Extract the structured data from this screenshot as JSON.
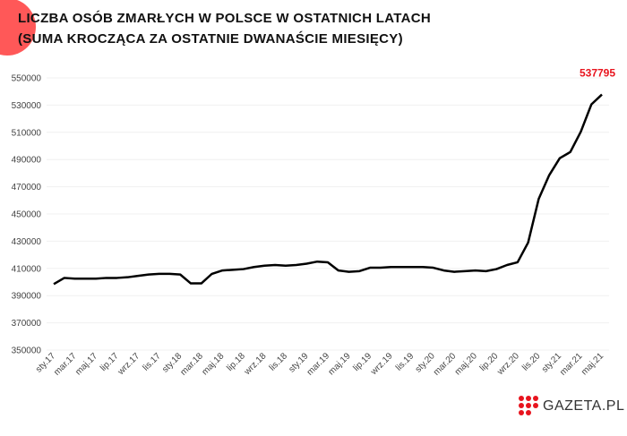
{
  "chart_data": {
    "type": "line",
    "title": "LICZBA OSÓB ZMARŁYCH W POLSCE W OSTATNICH LATACH",
    "subtitle": "(SUMA KROCZĄCA ZA OSTATNIE DWANAŚCIE MIESIĘCY)",
    "categories": [
      "sty.17",
      null,
      "mar.17",
      null,
      "maj.17",
      null,
      "lip.17",
      null,
      "wrz.17",
      null,
      "lis.17",
      null,
      "sty.18",
      null,
      "mar.18",
      null,
      "maj.18",
      null,
      "lip.18",
      null,
      "wrz.18",
      null,
      "lis.18",
      null,
      "sty.19",
      null,
      "mar.19",
      null,
      "maj.19",
      null,
      "lip.19",
      null,
      "wrz.19",
      null,
      "lis.19",
      null,
      "sty.20",
      null,
      "mar.20",
      null,
      "maj.20",
      null,
      "lip.20",
      null,
      "wrz.20",
      null,
      "lis.20",
      null,
      "sty.21",
      null,
      "mar.21",
      null,
      "maj.21"
    ],
    "values": [
      398500,
      403000,
      402500,
      402500,
      402500,
      403000,
      403000,
      403500,
      404500,
      405500,
      406000,
      406000,
      405500,
      399000,
      399000,
      406000,
      408500,
      409000,
      409500,
      411000,
      412000,
      412500,
      412000,
      412500,
      413500,
      415000,
      414500,
      408500,
      407500,
      408000,
      410500,
      410500,
      411000,
      411000,
      411000,
      411000,
      410500,
      408500,
      407500,
      408000,
      408500,
      408000,
      409500,
      412500,
      414500,
      429000,
      461000,
      478500,
      491000,
      495500,
      510500,
      530500,
      537795
    ],
    "color": "#000000",
    "label_color": "#e8141e",
    "ylim": [
      350000,
      550000
    ],
    "yticks": [
      350000,
      370000,
      390000,
      410000,
      430000,
      450000,
      470000,
      490000,
      510000,
      530000,
      550000
    ],
    "grid": true,
    "brand": "GAZETA.PL"
  }
}
